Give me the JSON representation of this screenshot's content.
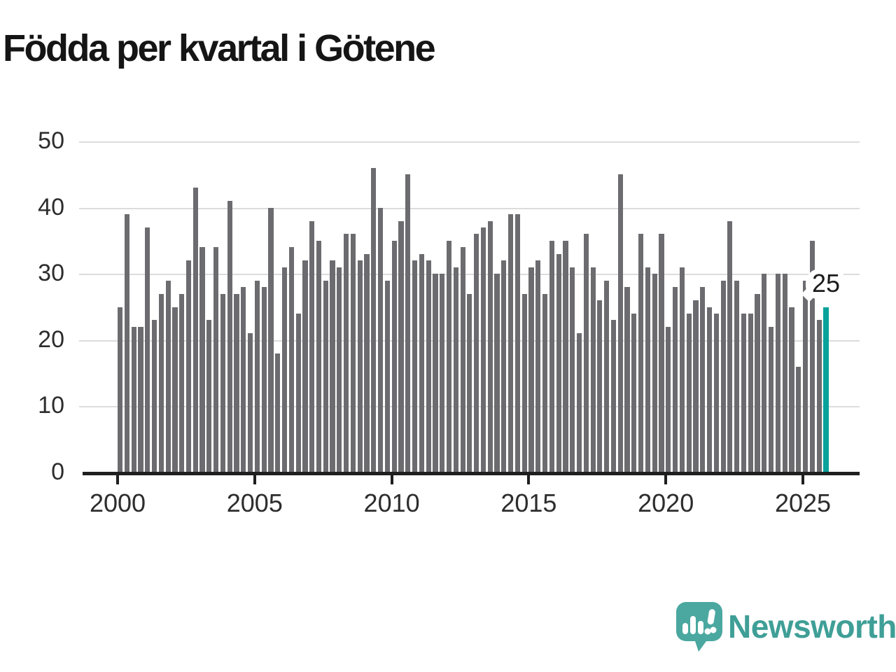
{
  "title": "Födda per kvartal i Götene",
  "annotation": {
    "value_label": "25"
  },
  "logo": {
    "text": "Newsworthy"
  },
  "colors": {
    "bar": "#6c6c70",
    "highlight": "#09a39b",
    "grid": "#dcdcdc",
    "axis": "#1f1f1f",
    "logo_teal": "#4aa8a0",
    "logo_text_teal": "#3f9f97"
  },
  "chart_data": {
    "type": "bar",
    "title": "Födda per kvartal i Götene",
    "x_unit": "quarter",
    "x_start": "2000 Q1",
    "x_end": "2025 Q4",
    "x_tick_labels": [
      "2000",
      "2005",
      "2010",
      "2015",
      "2020",
      "2025"
    ],
    "x_ticks_every_n_bars": 20,
    "y_ticks": [
      0,
      10,
      20,
      30,
      40,
      50
    ],
    "ylim": [
      0,
      50
    ],
    "grid": true,
    "legend": false,
    "values": [
      25,
      39,
      22,
      22,
      37,
      23,
      27,
      29,
      25,
      27,
      32,
      43,
      34,
      23,
      34,
      27,
      41,
      27,
      28,
      21,
      29,
      28,
      40,
      18,
      31,
      34,
      24,
      32,
      38,
      35,
      29,
      32,
      31,
      36,
      36,
      32,
      33,
      46,
      40,
      29,
      35,
      38,
      45,
      32,
      33,
      32,
      30,
      30,
      35,
      31,
      34,
      27,
      36,
      37,
      38,
      30,
      32,
      39,
      39,
      27,
      31,
      32,
      27,
      35,
      33,
      35,
      31,
      21,
      36,
      31,
      26,
      29,
      23,
      45,
      28,
      24,
      36,
      31,
      30,
      36,
      22,
      28,
      31,
      24,
      26,
      28,
      25,
      24,
      29,
      38,
      29,
      24,
      24,
      27,
      30,
      22,
      30,
      30,
      25,
      16,
      29,
      35,
      23,
      25
    ],
    "years": [
      2000,
      2001,
      2002,
      2003,
      2004,
      2005,
      2006,
      2007,
      2008,
      2009,
      2010,
      2011,
      2012,
      2013,
      2014,
      2015,
      2016,
      2017,
      2018,
      2019,
      2020,
      2021,
      2022,
      2023,
      2024,
      2025
    ],
    "highlight_last_bar": true,
    "highlight_last_value": 25
  }
}
